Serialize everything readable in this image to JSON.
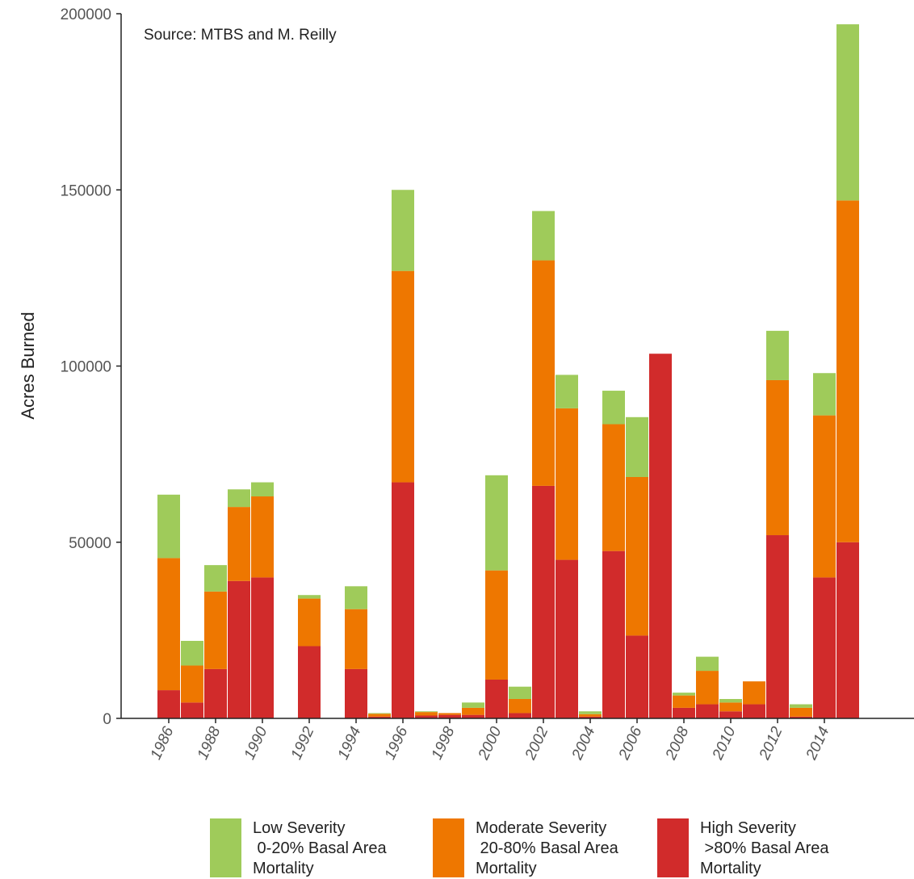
{
  "chart_data": {
    "type": "bar",
    "stacked": true,
    "title": "",
    "annotation": "Source: MTBS and M. Reilly",
    "xlabel": "",
    "ylabel": "Acres Burned",
    "ylim": [
      0,
      200000
    ],
    "yticks": [
      "0",
      "50000",
      "100000",
      "150000",
      "200000"
    ],
    "ytick_values": [
      0,
      50000,
      100000,
      150000,
      200000
    ],
    "x": [
      1986,
      1987,
      1988,
      1989,
      1990,
      1991,
      1992,
      1993,
      1994,
      1995,
      1996,
      1997,
      1998,
      1999,
      2000,
      2001,
      2002,
      2003,
      2004,
      2005,
      2006,
      2007,
      2008,
      2009,
      2010,
      2011,
      2012,
      2013,
      2014,
      2015
    ],
    "xtick_labels": [
      "1986",
      "1988",
      "1990",
      "1992",
      "1994",
      "1996",
      "1998",
      "2000",
      "2002",
      "2004",
      "2006",
      "2008",
      "2010",
      "2012",
      "2014"
    ],
    "grid": false,
    "legend_position": "bottom",
    "series": [
      {
        "name": "High Severity\n >80% Basal Area\nMortality",
        "color": "#d12b2b",
        "values": [
          8000,
          4500,
          14000,
          39000,
          40000,
          0,
          20500,
          0,
          14000,
          500,
          67000,
          800,
          1000,
          1000,
          11000,
          1500,
          66000,
          45000,
          500,
          47500,
          23500,
          103500,
          3000,
          4000,
          2000,
          4000,
          52000,
          500,
          40000,
          50000
        ]
      },
      {
        "name": "Moderate Severity\n 20-80% Basal Area\nMortality",
        "color": "#ee7700",
        "values": [
          37500,
          10500,
          22000,
          21000,
          23000,
          0,
          13500,
          0,
          17000,
          800,
          60000,
          1000,
          500,
          2000,
          31000,
          4000,
          64000,
          43000,
          700,
          36000,
          45000,
          0,
          3500,
          9500,
          2500,
          6500,
          44000,
          2500,
          46000,
          97000
        ]
      },
      {
        "name": "Low Severity\n 0-20% Basal Area\nMortality",
        "color": "#9fcb5a",
        "values": [
          18000,
          7000,
          7500,
          5000,
          4000,
          0,
          1000,
          0,
          6500,
          200,
          23000,
          200,
          0,
          1500,
          27000,
          3500,
          14000,
          9500,
          800,
          9500,
          17000,
          0,
          800,
          4000,
          1000,
          0,
          14000,
          1000,
          12000,
          50000
        ]
      }
    ]
  },
  "legend": [
    {
      "color": "#9fcb5a",
      "lines": [
        "Low Severity",
        " 0-20% Basal Area",
        "Mortality"
      ]
    },
    {
      "color": "#ee7700",
      "lines": [
        "Moderate Severity",
        " 20-80% Basal Area",
        "Mortality"
      ]
    },
    {
      "color": "#d12b2b",
      "lines": [
        "High Severity",
        " >80% Basal Area",
        "Mortality"
      ]
    }
  ]
}
